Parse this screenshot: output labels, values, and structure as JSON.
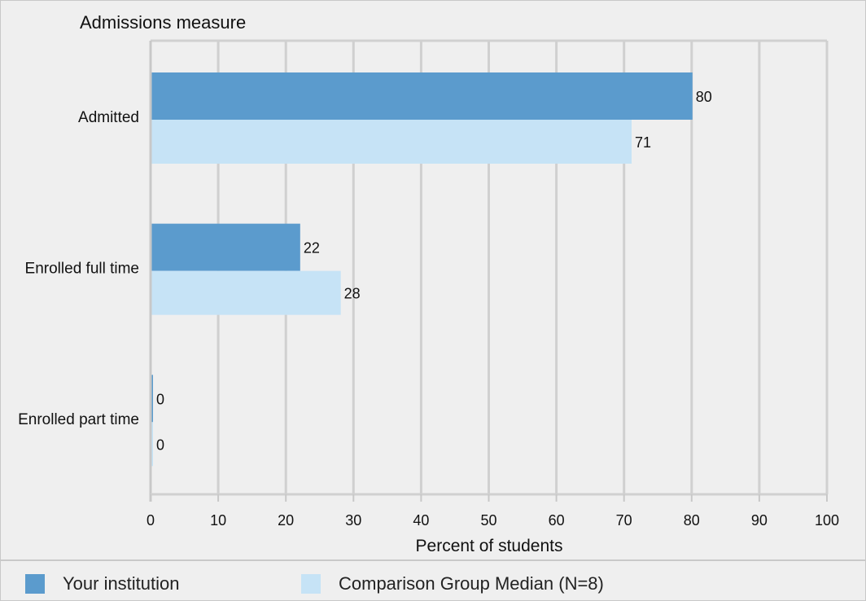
{
  "chart_data": {
    "type": "bar",
    "orientation": "horizontal",
    "title": "Admissions measure",
    "xlabel": "Percent of students",
    "ylabel": "",
    "xlim": [
      0,
      100
    ],
    "xticks": [
      0,
      10,
      20,
      30,
      40,
      50,
      60,
      70,
      80,
      90,
      100
    ],
    "grid": true,
    "categories": [
      "Admitted",
      "Enrolled full time",
      "Enrolled part time"
    ],
    "series": [
      {
        "name": "Your institution",
        "color": "#5b9bcd",
        "values": [
          80,
          22,
          0
        ]
      },
      {
        "name": "Comparison Group Median (N=8)",
        "color": "#c6e3f6",
        "values": [
          71,
          28,
          0
        ]
      }
    ],
    "legend_position": "bottom"
  }
}
